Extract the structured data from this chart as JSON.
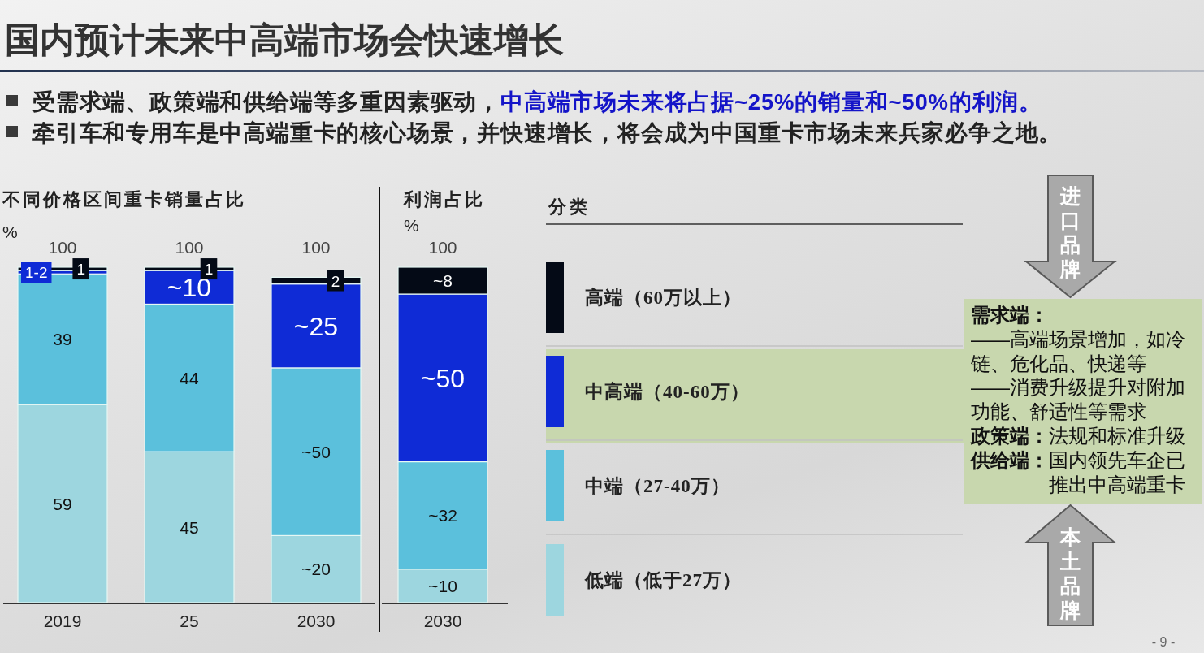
{
  "chart_data": [
    {
      "type": "other",
      "title": "国内预计未来中高端市场会快速增长",
      "annotations": [
        "受需求端、政策端和供给端等多重因素驱动，",
        "中高端市场未来将占据~25%的销量和~50%的利润。",
        "牵引车和专用车是中高端重卡的核心场景，并快速增长，将会成为中国重卡市场未来兵家必争之地。",
        "- 9 -"
      ]
    },
    {
      "type": "bar",
      "title": "不同价格区间重卡销量占比",
      "ylabel": "%",
      "categories": [
        "2019",
        "25",
        "2030"
      ],
      "stacked": true,
      "ylim": [
        0,
        100
      ],
      "tick_labels": "x",
      "legend": "right",
      "legend_title": "分类",
      "totals": [
        "100",
        "100",
        null
      ],
      "annotations": [
        "100"
      ],
      "series": [
        {
          "name": "低端（低于27万）",
          "color": "#9dd6df",
          "values": [
            59,
            45,
            20
          ],
          "value_labels": [
            "59",
            "45",
            "~20"
          ]
        },
        {
          "name": "中端（27-40万）",
          "color": "#5bc0dc",
          "values": [
            39,
            44,
            50
          ],
          "value_labels": [
            "39",
            "44",
            "~50"
          ]
        },
        {
          "name": "中高端（40-60万）",
          "color": "#0f2bd6",
          "values": [
            1,
            10,
            25
          ],
          "value_labels": [
            "1-2",
            "~10",
            "~25"
          ]
        },
        {
          "name": "高端（60万以上）",
          "color": "#040a16",
          "values": [
            1,
            1,
            2
          ],
          "value_labels": [
            "1",
            "1",
            "2"
          ]
        }
      ]
    },
    {
      "type": "bar",
      "title": "利润占比",
      "ylabel": "%",
      "categories": [
        "2030"
      ],
      "stacked": true,
      "ylim": [
        0,
        100
      ],
      "tick_labels": "x",
      "totals": [
        "100"
      ],
      "series": [
        {
          "color": "#9dd6df",
          "values": [
            10
          ],
          "value_labels": [
            "~10"
          ]
        },
        {
          "color": "#5bc0dc",
          "values": [
            32
          ],
          "value_labels": [
            "~32"
          ]
        },
        {
          "color": "#0f2bd6",
          "values": [
            50
          ],
          "value_labels": [
            "~50"
          ]
        },
        {
          "color": "#040a16",
          "values": [
            8
          ],
          "value_labels": [
            "~8"
          ]
        }
      ]
    },
    {
      "type": "other",
      "annotations": [
        "进口品牌",
        "需求端：",
        "——高端场景增加，如冷链、危化品、快递等",
        "——消费升级提升对附加功能、舒适性等需求",
        "政策端：法规和标准升级",
        "供给端：国内领先车企已推出中高端重卡",
        "本土品牌"
      ]
    }
  ]
}
